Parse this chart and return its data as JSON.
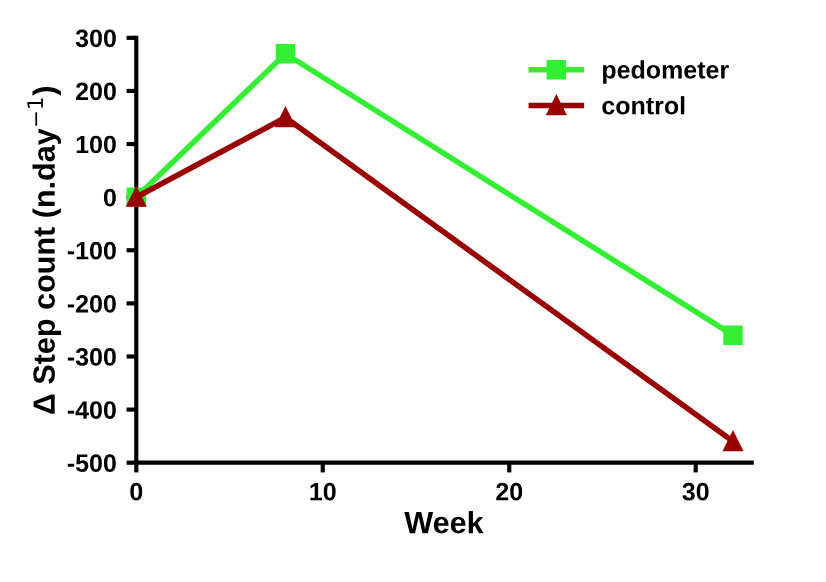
{
  "chart_data": {
    "type": "line",
    "xlabel": "Week",
    "ylabel": "Δ Step count (n.day$^{−1}$)",
    "xlim": [
      0,
      33
    ],
    "xticks": [
      0,
      10,
      20,
      30
    ],
    "ylim": [
      -500,
      300
    ],
    "yticks": [
      -500,
      -400,
      -300,
      -200,
      -100,
      0,
      100,
      200,
      300
    ],
    "grid": false,
    "legend": "top right",
    "series": [
      {
        "name": "pedometer",
        "color": "#33ee33",
        "marker": "square",
        "x": [
          0,
          8,
          32
        ],
        "values": [
          0,
          270,
          -260
        ]
      },
      {
        "name": "control",
        "color": "#990000",
        "marker": "triangle",
        "x": [
          0,
          8,
          32
        ],
        "values": [
          0,
          150,
          -460
        ]
      }
    ]
  }
}
